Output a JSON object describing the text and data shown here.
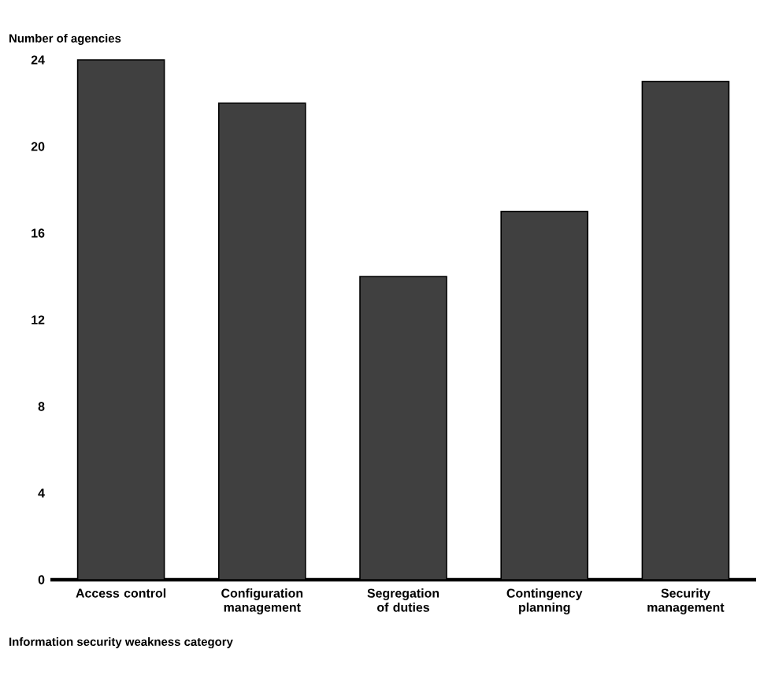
{
  "chart_data": {
    "type": "bar",
    "ylabel": "Number of agencies",
    "xlabel": "Information security weakness category",
    "categories": [
      "Access control",
      "Configuration management",
      "Segregation of duties",
      "Contingency planning",
      "Security management"
    ],
    "values": [
      24,
      22,
      14,
      17,
      23
    ],
    "color": "#404040",
    "ylim": [
      0,
      24
    ],
    "yticks": [
      0,
      4,
      8,
      12,
      16,
      20,
      24
    ]
  }
}
